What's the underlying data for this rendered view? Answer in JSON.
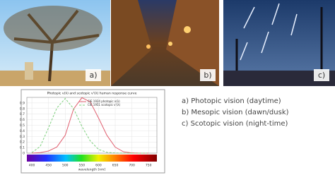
{
  "photos": [
    {
      "label": "a)"
    },
    {
      "label": "b)"
    },
    {
      "label": "c)"
    }
  ],
  "chart_data": {
    "type": "line",
    "title": "Photopic v(λ) and scotopic v'(λ) human response curve",
    "x_label": "wavelength [nm]",
    "x": [
      400,
      425,
      450,
      475,
      500,
      525,
      550,
      575,
      600,
      625,
      650,
      675,
      700,
      725,
      750
    ],
    "series": [
      {
        "name": "CIE 1924 photopic v(λ)",
        "color": "#e06070",
        "dash": false,
        "values": [
          0.0004,
          0.01,
          0.038,
          0.11,
          0.32,
          0.79,
          0.995,
          0.92,
          0.63,
          0.32,
          0.107,
          0.023,
          0.004,
          0.0007,
          0.0001
        ]
      },
      {
        "name": "CIE 1951 scotopic v'(λ)",
        "color": "#7ccf7c",
        "dash": true,
        "values": [
          0.0093,
          0.12,
          0.455,
          0.81,
          0.98,
          0.8,
          0.48,
          0.22,
          0.066,
          0.015,
          0.0032,
          0.0006,
          0.0001,
          0,
          0
        ]
      }
    ],
    "xlim": [
      385,
      775
    ],
    "xticks": [
      400,
      450,
      500,
      550,
      600,
      650,
      700,
      750
    ],
    "ylim": [
      0,
      1
    ],
    "yticks": [
      0,
      0.1,
      0.2,
      0.3,
      0.4,
      0.5,
      0.6,
      0.7,
      0.8,
      0.9
    ],
    "grid": true
  },
  "list": [
    "a)  Photopic vision (daytime)",
    "b)  Mesopic vision (dawn/dusk)",
    "c)  Scotopic vision (night-time)"
  ]
}
